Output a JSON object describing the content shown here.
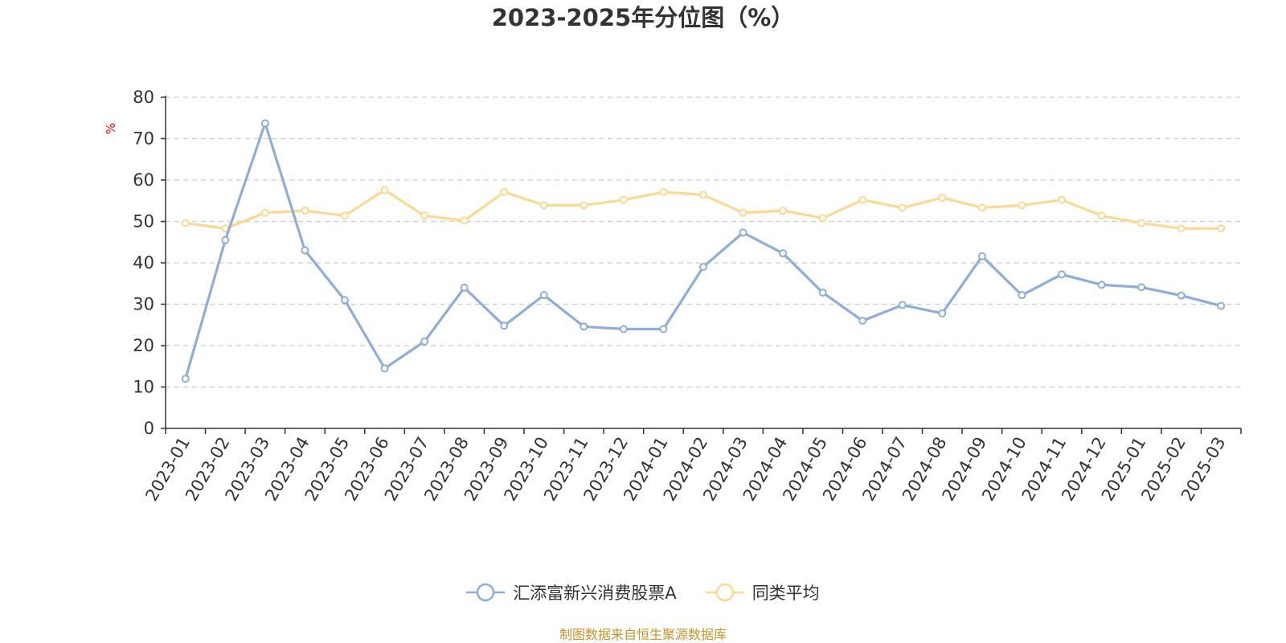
{
  "chart_data": {
    "type": "line",
    "title": "2023-2025年分位图（%）",
    "ylabel": "%",
    "xlabel": "",
    "ylim": [
      0,
      80
    ],
    "yticks": [
      0,
      10,
      20,
      30,
      40,
      50,
      60,
      70,
      80
    ],
    "grid": true,
    "legend_position": "bottom",
    "categories": [
      "2023-01",
      "2023-02",
      "2023-03",
      "2023-04",
      "2023-05",
      "2023-06",
      "2023-07",
      "2023-08",
      "2023-09",
      "2023-10",
      "2023-11",
      "2023-12",
      "2024-01",
      "2024-02",
      "2024-03",
      "2024-04",
      "2024-05",
      "2024-06",
      "2024-07",
      "2024-08",
      "2024-09",
      "2024-10",
      "2024-11",
      "2024-12",
      "2025-01",
      "2025-02",
      "2025-03"
    ],
    "series": [
      {
        "name": "汇添富新兴消费股票A",
        "color": "#8eadd9",
        "values": [
          12.0,
          45.5,
          73.7,
          43.0,
          31.0,
          14.5,
          21.0,
          34.0,
          24.8,
          32.2,
          24.6,
          24.0,
          24.0,
          39.0,
          47.3,
          42.3,
          32.8,
          26.0,
          29.8,
          27.8,
          41.6,
          32.2,
          37.2,
          34.7,
          34.1,
          32.1,
          29.6
        ]
      },
      {
        "name": "同类平均",
        "color": "#fcd993",
        "values": [
          49.6,
          48.3,
          52.1,
          52.6,
          51.4,
          57.6,
          51.4,
          50.2,
          57.1,
          53.9,
          53.9,
          55.2,
          57.1,
          56.4,
          52.1,
          52.6,
          50.8,
          55.2,
          53.3,
          55.7,
          53.3,
          53.9,
          55.2,
          51.4,
          49.6,
          48.3,
          48.3
        ]
      }
    ]
  },
  "source_text": "制图数据来自恒生聚源数据库"
}
